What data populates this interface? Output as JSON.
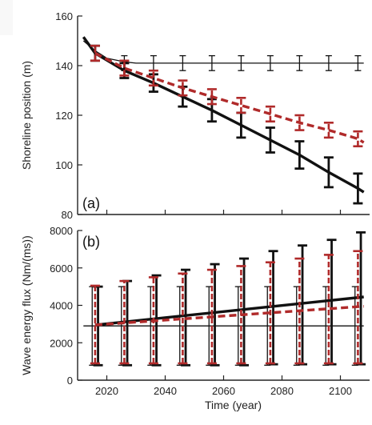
{
  "chart_data": [
    {
      "type": "line",
      "panel_label": "(a)",
      "xlabel": "",
      "ylabel": "Shoreline position (m)",
      "xlim": [
        2010,
        2110
      ],
      "ylim": [
        80,
        160
      ],
      "yticks": [
        80,
        100,
        120,
        140,
        160
      ],
      "series": [
        {
          "style": "thin-black",
          "color": "#111111",
          "x": [
            2012,
            2016,
            2020,
            2026,
            2030,
            2040,
            2050,
            2060,
            2070,
            2080,
            2090,
            2100,
            2108
          ],
          "y": [
            150,
            146,
            143,
            141.5,
            141,
            141,
            141,
            141,
            141,
            141,
            141,
            141,
            141
          ],
          "err_x": [
            2016,
            2026,
            2036,
            2046,
            2056,
            2066,
            2076,
            2086,
            2096,
            2106
          ],
          "err_y": [
            145,
            141,
            141,
            141,
            141,
            141,
            141,
            141,
            141,
            141
          ],
          "err_half": [
            3,
            3,
            3,
            3,
            3,
            3,
            3,
            3,
            3,
            3
          ]
        },
        {
          "style": "thick-black",
          "color": "#111111",
          "x": [
            2012,
            2016,
            2026,
            2036,
            2046,
            2056,
            2066,
            2076,
            2086,
            2096,
            2106,
            2108
          ],
          "y": [
            151.5,
            145,
            138,
            133,
            127.5,
            122,
            116,
            110,
            104,
            97,
            90.5,
            89
          ],
          "err_x": [
            2016,
            2026,
            2036,
            2046,
            2056,
            2066,
            2076,
            2086,
            2096,
            2106
          ],
          "err_y": [
            145,
            138,
            133,
            127.5,
            122,
            116,
            110,
            104,
            97,
            90.5
          ],
          "err_half": [
            3,
            3,
            3.5,
            4,
            4.5,
            5,
            5,
            5.5,
            6,
            6
          ]
        },
        {
          "style": "red-dashed",
          "color": "#b02a2a",
          "x": [
            2016,
            2026,
            2036,
            2046,
            2056,
            2066,
            2076,
            2086,
            2096,
            2106,
            2108
          ],
          "y": [
            145,
            139,
            135,
            131,
            127.5,
            124,
            120.5,
            117,
            114,
            110.5,
            109
          ],
          "err_x": [
            2016,
            2026,
            2036,
            2046,
            2056,
            2066,
            2076,
            2086,
            2096,
            2106
          ],
          "err_y": [
            145,
            139,
            135,
            131,
            127.5,
            124,
            120.5,
            117,
            114,
            110.5
          ],
          "err_half": [
            3,
            3,
            3,
            3,
            3,
            3,
            3,
            3,
            3,
            3
          ]
        }
      ]
    },
    {
      "type": "line",
      "panel_label": "(b)",
      "xlabel": "Time (year)",
      "ylabel": "Wave energy flux (Nm/(ms))",
      "xlim": [
        2010,
        2110
      ],
      "ylim": [
        0,
        8000
      ],
      "yticks": [
        0,
        2000,
        4000,
        6000,
        8000
      ],
      "xticks": [
        2020,
        2040,
        2060,
        2080,
        2100
      ],
      "series": [
        {
          "style": "thin-black",
          "color": "#111111",
          "x": [
            2012,
            2108
          ],
          "y": [
            2900,
            2900
          ],
          "err_x": [
            2015,
            2025,
            2035,
            2045,
            2055,
            2065,
            2075,
            2085,
            2095,
            2105
          ],
          "err_lo": [
            800,
            800,
            800,
            800,
            800,
            800,
            800,
            800,
            800,
            800
          ],
          "err_hi": [
            5000,
            5000,
            5000,
            5000,
            5000,
            5000,
            5000,
            5000,
            5000,
            5000
          ]
        },
        {
          "style": "thick-black",
          "color": "#111111",
          "x": [
            2016,
            2108
          ],
          "y": [
            2950,
            4450
          ],
          "err_x": [
            2017,
            2027,
            2037,
            2047,
            2057,
            2067,
            2077,
            2087,
            2097,
            2107
          ],
          "err_lo": [
            800,
            800,
            800,
            800,
            800,
            800,
            850,
            850,
            850,
            850
          ],
          "err_hi": [
            5000,
            5300,
            5600,
            5900,
            6200,
            6500,
            6900,
            7200,
            7500,
            7900
          ]
        },
        {
          "style": "red-dashed",
          "color": "#b02a2a",
          "x": [
            2016,
            2108
          ],
          "y": [
            2950,
            3950
          ],
          "err_x": [
            2016,
            2026,
            2036,
            2046,
            2056,
            2066,
            2076,
            2086,
            2096,
            2106
          ],
          "err_lo": [
            900,
            900,
            900,
            900,
            900,
            900,
            900,
            900,
            900,
            900
          ],
          "err_hi": [
            5050,
            5300,
            5500,
            5700,
            5900,
            6100,
            6300,
            6500,
            6700,
            6900
          ]
        }
      ]
    }
  ]
}
